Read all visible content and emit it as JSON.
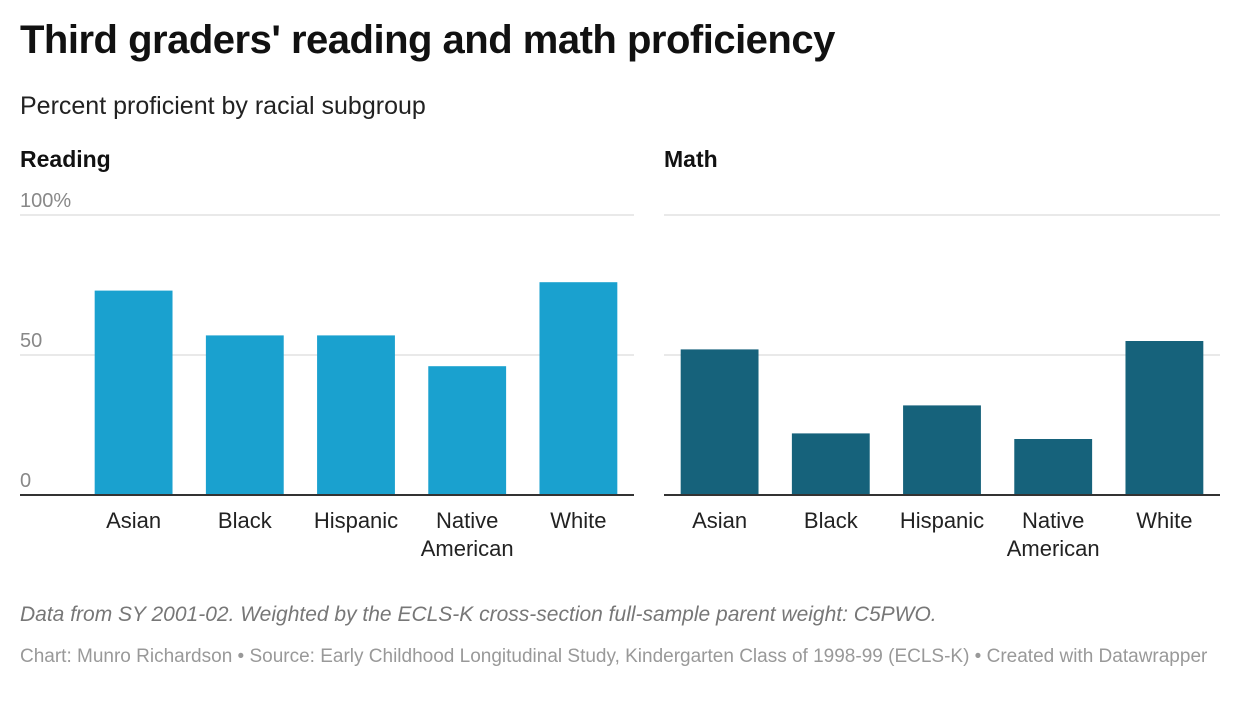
{
  "title": "Third graders' reading and math proficiency",
  "subtitle": "Percent proficient by racial subgroup",
  "chart_data": [
    {
      "type": "bar",
      "title": "Reading",
      "categories": [
        "Asian",
        "Black",
        "Hispanic",
        "Native American",
        "White"
      ],
      "values": [
        73,
        57,
        57,
        46,
        76
      ],
      "ylim": [
        0,
        100
      ],
      "yticks": [
        {
          "value": 0,
          "label": "0"
        },
        {
          "value": 50,
          "label": "50"
        },
        {
          "value": 100,
          "label": "100%"
        }
      ],
      "grid": true,
      "color": "#1aa1cf"
    },
    {
      "type": "bar",
      "title": "Math",
      "categories": [
        "Asian",
        "Black",
        "Hispanic",
        "Native American",
        "White"
      ],
      "values": [
        52,
        22,
        32,
        20,
        55
      ],
      "ylim": [
        0,
        100
      ],
      "grid": true,
      "color": "#16627b"
    }
  ],
  "footer": {
    "note": "Data from SY 2001-02. Weighted by the ECLS-K cross-section full-sample parent weight: C5PWO.",
    "credits": "Chart: Munro Richardson • Source: Early Childhood Longitudinal Study, Kindergarten Class of 1998-99 (ECLS-K) • Created with Datawrapper"
  }
}
